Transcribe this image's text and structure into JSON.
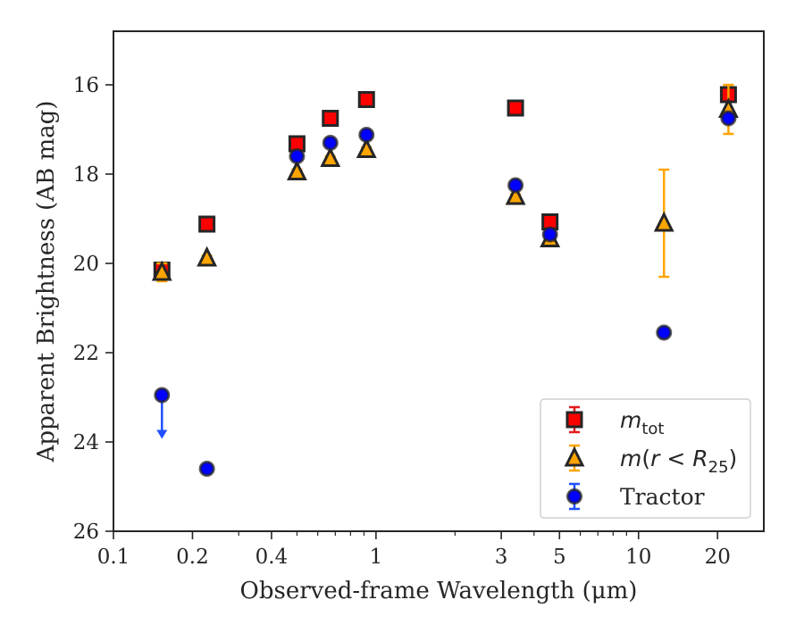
{
  "chart_data": {
    "type": "scatter",
    "xlabel": "Observed-frame Wavelength (μm)",
    "ylabel": "Apparent Brightness (AB mag)",
    "xscale": "log",
    "yaxis_inverted": true,
    "xlim": [
      0.1,
      30
    ],
    "ylim": [
      26,
      14.8
    ],
    "xticks": [
      0.1,
      0.2,
      0.4,
      1,
      3,
      5,
      10,
      20
    ],
    "xtick_labels": [
      "0.1",
      "0.2",
      "0.4",
      "1",
      "3",
      "5",
      "10",
      "20"
    ],
    "yticks": [
      16,
      18,
      20,
      22,
      24,
      26
    ],
    "ytick_labels": [
      "16",
      "18",
      "20",
      "22",
      "24",
      "26"
    ],
    "grid": false,
    "legend_position": "lower-right",
    "series": [
      {
        "name": "m_tot",
        "legend_label": "m_tot",
        "marker": "square",
        "color": "#ff0000",
        "edge_color": "#262626",
        "errorbar_color": "#e31a1c",
        "points": [
          {
            "x": 0.153,
            "y": 20.15,
            "err": 0.1
          },
          {
            "x": 0.227,
            "y": 19.12,
            "err": 0.05
          },
          {
            "x": 0.5,
            "y": 17.32,
            "err": 0.05
          },
          {
            "x": 0.67,
            "y": 16.75,
            "err": 0.05
          },
          {
            "x": 0.92,
            "y": 16.33,
            "err": 0.05
          },
          {
            "x": 3.4,
            "y": 16.52,
            "err": 0.05
          },
          {
            "x": 4.6,
            "y": 19.07,
            "err": 0.05
          },
          {
            "x": 22.0,
            "y": 16.22,
            "err": 0.05
          }
        ]
      },
      {
        "name": "m(r < R25)",
        "legend_label": "m(r < R25)",
        "marker": "triangle",
        "color": "#ffa500",
        "edge_color": "#262626",
        "errorbar_color": "#ffa500",
        "points": [
          {
            "x": 0.153,
            "y": 20.2,
            "err": 0.2
          },
          {
            "x": 0.227,
            "y": 19.88,
            "err": 0.05
          },
          {
            "x": 0.5,
            "y": 17.95,
            "err": 0.05
          },
          {
            "x": 0.67,
            "y": 17.65,
            "err": 0.05
          },
          {
            "x": 0.92,
            "y": 17.45,
            "err": 0.05
          },
          {
            "x": 3.4,
            "y": 18.5,
            "err": 0.05
          },
          {
            "x": 4.6,
            "y": 19.45,
            "err": 0.05
          },
          {
            "x": 12.5,
            "y": 19.1,
            "err": 1.2
          },
          {
            "x": 22.0,
            "y": 16.55,
            "err": 0.55
          }
        ]
      },
      {
        "name": "Tractor",
        "legend_label": "Tractor",
        "marker": "circle",
        "color": "#0000ff",
        "edge_color": "#262626",
        "errorbar_color": "#1f4fff",
        "points": [
          {
            "x": 0.153,
            "y": 22.95,
            "err": 0.0,
            "upper_limit": true
          },
          {
            "x": 0.227,
            "y": 24.6,
            "err": 0.05
          },
          {
            "x": 0.5,
            "y": 17.6,
            "err": 0.05
          },
          {
            "x": 0.67,
            "y": 17.3,
            "err": 0.05
          },
          {
            "x": 0.92,
            "y": 17.12,
            "err": 0.05
          },
          {
            "x": 3.4,
            "y": 18.25,
            "err": 0.05
          },
          {
            "x": 4.6,
            "y": 19.35,
            "err": 0.05
          },
          {
            "x": 12.5,
            "y": 21.55,
            "err": 0.05
          },
          {
            "x": 22.0,
            "y": 16.75,
            "err": 0.05
          }
        ]
      }
    ]
  }
}
